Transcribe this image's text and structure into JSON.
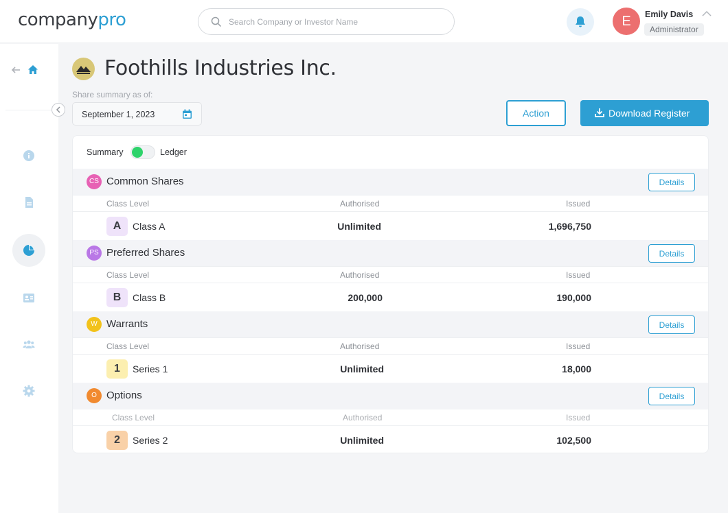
{
  "header": {
    "logo_main": "company",
    "logo_accent": "pro",
    "search_placeholder": "Search Company or Investor Name",
    "user_initial": "E",
    "user_name": "Emily Davis",
    "user_role": "Administrator"
  },
  "page": {
    "company_name": "Foothills Industries Inc.",
    "share_summary_label": "Share summary as of:",
    "date": "September 1, 2023",
    "action_label": "Action",
    "download_label": "Download Register"
  },
  "toggle": {
    "left": "Summary",
    "right": "Ledger"
  },
  "columns": {
    "class": "Class Level",
    "authorised": "Authorised",
    "issued": "Issued"
  },
  "details_label": "Details",
  "sections": [
    {
      "badge": "CS",
      "badge_color": "#e761b4",
      "title": "Common Shares",
      "chip": "A",
      "chip_color": "#efe3fa",
      "class": "Class A",
      "authorised": "Unlimited",
      "issued": "1,696,750"
    },
    {
      "badge": "PS",
      "badge_color": "#b977e6",
      "title": "Preferred Shares",
      "chip": "B",
      "chip_color": "#efe3fa",
      "class": "Class B",
      "authorised": "200,000",
      "issued": "190,000"
    },
    {
      "badge": "W",
      "badge_color": "#f2c21b",
      "title": "Warrants",
      "chip": "1",
      "chip_color": "#fcefb0",
      "class": "Series 1",
      "authorised": "Unlimited",
      "issued": "18,000"
    },
    {
      "badge": "O",
      "badge_color": "#f18a30",
      "title": "Options",
      "chip": "2",
      "chip_color": "#f9d1a8",
      "class": "Series 2",
      "authorised": "Unlimited",
      "issued": "102,500"
    }
  ],
  "colors": {
    "accent": "#2d9fd3",
    "toggle_on": "#2ed36b",
    "avatar": "#ec6f6f"
  }
}
